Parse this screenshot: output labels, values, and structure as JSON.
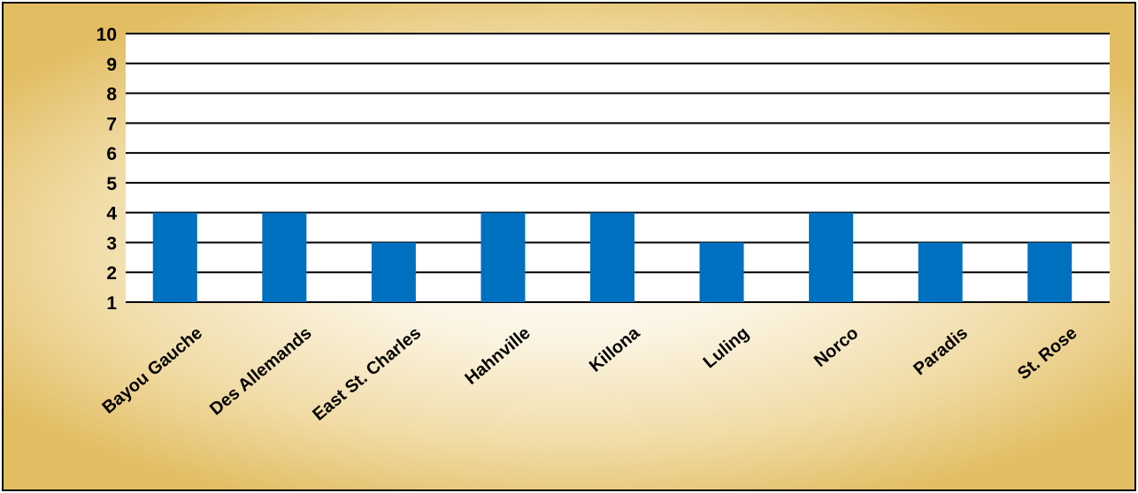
{
  "chart_data": {
    "type": "bar",
    "title": "",
    "xlabel": "",
    "ylabel": "",
    "categories": [
      "Bayou Gauche",
      "Des Allemands",
      "East St. Charles",
      "Hahnville",
      "Killona",
      "Luling",
      "Norco",
      "Paradis",
      "St. Rose"
    ],
    "values": [
      4,
      4,
      3,
      4,
      4,
      3,
      4,
      3,
      3
    ],
    "ylim": [
      1,
      10
    ],
    "yticks": [
      "1",
      "2",
      "3",
      "4",
      "5",
      "6",
      "7",
      "8",
      "9",
      "10"
    ],
    "grid": true,
    "bar_color": "#0070c0",
    "plot_background": "#ffffff",
    "gridline_color": "#000000"
  }
}
